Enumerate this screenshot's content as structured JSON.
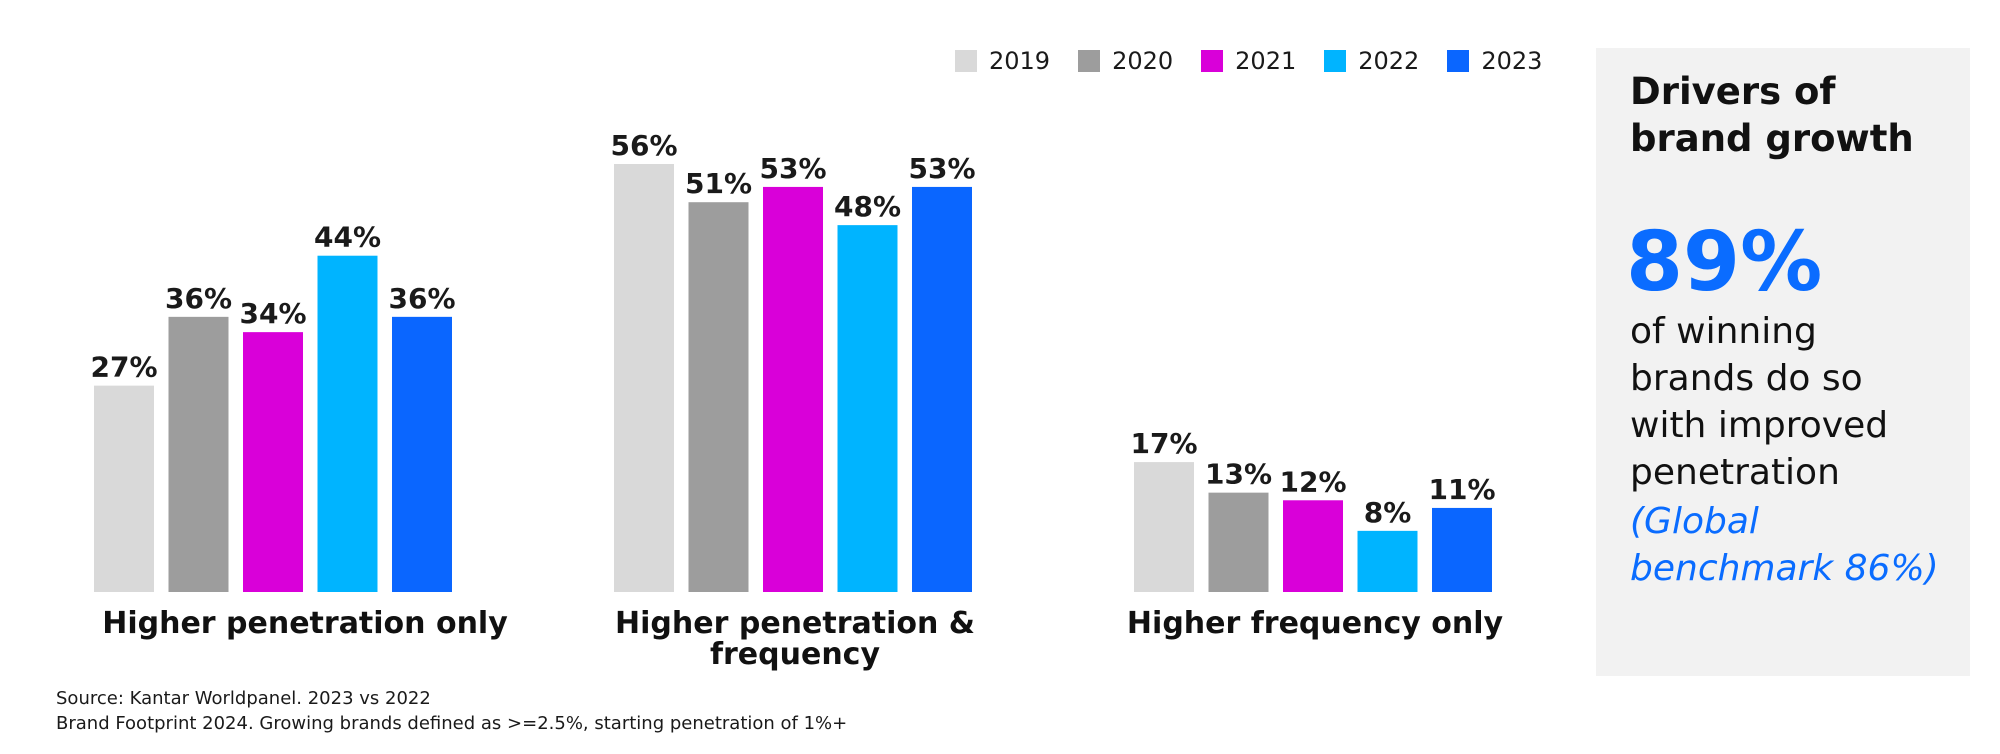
{
  "chart_data": {
    "type": "bar",
    "categories": [
      "Higher penetration only",
      "Higher penetration & frequency",
      "Higher frequency only"
    ],
    "series": [
      {
        "name": "2019",
        "color": "#d9d9d9",
        "values": [
          27,
          56,
          17
        ]
      },
      {
        "name": "2020",
        "color": "#9d9d9d",
        "values": [
          36,
          51,
          13
        ]
      },
      {
        "name": "2021",
        "color": "#d900d9",
        "values": [
          34,
          53,
          12
        ]
      },
      {
        "name": "2022",
        "color": "#00b4ff",
        "values": [
          44,
          48,
          8
        ]
      },
      {
        "name": "2023",
        "color": "#0a66ff",
        "values": [
          36,
          53,
          11
        ]
      }
    ],
    "value_suffix": "%",
    "ylim": [
      0,
      60
    ],
    "grid": false,
    "legend_position": "top-right"
  },
  "legend": {
    "items": [
      {
        "label": "2019",
        "color": "#d9d9d9"
      },
      {
        "label": "2020",
        "color": "#9d9d9d"
      },
      {
        "label": "2021",
        "color": "#d900d9"
      },
      {
        "label": "2022",
        "color": "#00b4ff"
      },
      {
        "label": "2023",
        "color": "#0a66ff"
      }
    ]
  },
  "group_labels": [
    {
      "line1": "Higher penetration only",
      "line2": ""
    },
    {
      "line1": "Higher penetration &",
      "line2": "frequency"
    },
    {
      "line1": "Higher frequency only",
      "line2": ""
    }
  ],
  "panel": {
    "title": "Drivers of brand growth",
    "stat": "89%",
    "text": "of winning brands do so with improved penetration",
    "note": "(Global benchmark 86%)",
    "accent_color": "#0a6cff"
  },
  "source": {
    "line1": "Source: Kantar Worldpanel. 2023 vs 2022",
    "line2": "Brand Footprint 2024. Growing brands defined as >=2.5%, starting penetration of 1%+"
  }
}
